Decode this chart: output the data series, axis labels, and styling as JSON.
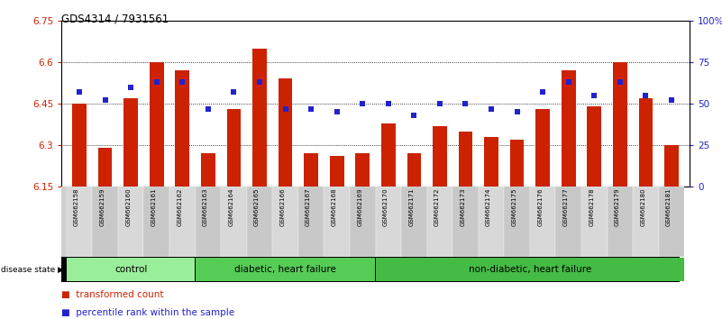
{
  "title": "GDS4314 / 7931561",
  "samples": [
    "GSM662158",
    "GSM662159",
    "GSM662160",
    "GSM662161",
    "GSM662162",
    "GSM662163",
    "GSM662164",
    "GSM662165",
    "GSM662166",
    "GSM662167",
    "GSM662168",
    "GSM662169",
    "GSM662170",
    "GSM662171",
    "GSM662172",
    "GSM662173",
    "GSM662174",
    "GSM662175",
    "GSM662176",
    "GSM662177",
    "GSM662178",
    "GSM662179",
    "GSM662180",
    "GSM662181"
  ],
  "red_values": [
    6.45,
    6.29,
    6.47,
    6.6,
    6.57,
    6.27,
    6.43,
    6.65,
    6.54,
    6.27,
    6.26,
    6.27,
    6.38,
    6.27,
    6.37,
    6.35,
    6.33,
    6.32,
    6.43,
    6.57,
    6.44,
    6.6,
    6.47,
    6.3
  ],
  "blue_values": [
    57,
    52,
    60,
    63,
    63,
    47,
    57,
    63,
    47,
    47,
    45,
    50,
    50,
    43,
    50,
    50,
    47,
    45,
    57,
    63,
    55,
    63,
    55,
    52
  ],
  "groups": [
    {
      "label": "control",
      "start": 0,
      "end": 5,
      "color": "#99ee99"
    },
    {
      "label": "diabetic, heart failure",
      "start": 5,
      "end": 12,
      "color": "#55cc55"
    },
    {
      "label": "non-diabetic, heart failure",
      "start": 12,
      "end": 24,
      "color": "#44bb44"
    }
  ],
  "ylim_left": [
    6.15,
    6.75
  ],
  "yticks_left": [
    6.15,
    6.3,
    6.45,
    6.6,
    6.75
  ],
  "ylim_right": [
    0,
    100
  ],
  "yticks_right": [
    0,
    25,
    50,
    75,
    100
  ],
  "ytick_labels_right": [
    "0",
    "25",
    "50",
    "75",
    "100%"
  ],
  "bar_color": "#cc2200",
  "dot_color": "#2222cc",
  "background_color": "#ffffff",
  "tick_label_color_left": "#cc2200",
  "tick_label_color_right": "#2222cc",
  "bar_width": 0.55,
  "dot_size": 16,
  "grid_yticks": [
    6.3,
    6.45,
    6.6
  ]
}
